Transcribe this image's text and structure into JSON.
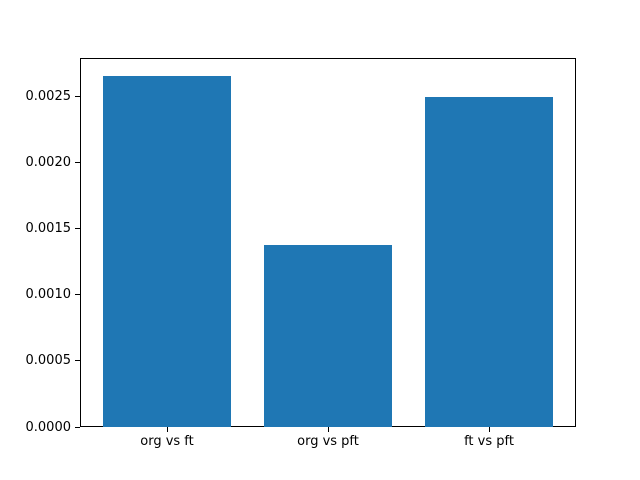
{
  "figure": {
    "background": "#ffffff",
    "spine_color": "#000000",
    "tick_color": "#000000",
    "text_color": "#000000"
  },
  "chart_data": {
    "type": "bar",
    "title": "",
    "xlabel": "",
    "ylabel": "",
    "categories": [
      "org vs ft",
      "org vs pft",
      "ft vs pft"
    ],
    "values": [
      0.00266,
      0.00138,
      0.0025
    ],
    "bar_color": "#1f77b4",
    "bar_width_fraction": 0.8,
    "ylim": [
      0,
      0.002793
    ],
    "yticks": [
      {
        "value": 0.0,
        "label": "0.0000"
      },
      {
        "value": 0.0005,
        "label": "0.0005"
      },
      {
        "value": 0.001,
        "label": "0.0010"
      },
      {
        "value": 0.0015,
        "label": "0.0015"
      },
      {
        "value": 0.002,
        "label": "0.0020"
      },
      {
        "value": 0.0025,
        "label": "0.0025"
      }
    ],
    "grid": false,
    "legend": false
  }
}
